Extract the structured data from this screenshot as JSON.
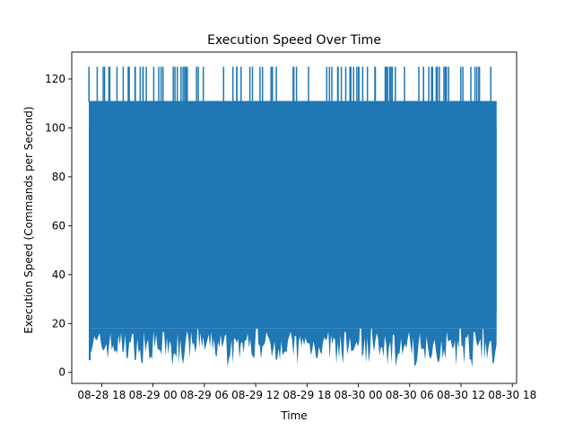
{
  "chart_data": {
    "type": "line",
    "title": "Execution Speed Over Time",
    "xlabel": "Time",
    "ylabel": "Execution Speed (Commands per Second)",
    "x_ticks": [
      "08-28 18",
      "08-29 00",
      "08-29 06",
      "08-29 12",
      "08-29 18",
      "08-30 00",
      "08-30 06",
      "08-30 12",
      "08-30 18"
    ],
    "x_range": [
      "2024-08-28 14:30",
      "2024-08-30 18:30"
    ],
    "data_x_range": [
      "2024-08-28 16:30",
      "2024-08-30 16:10"
    ],
    "y_ticks": [
      0,
      20,
      40,
      60,
      80,
      100,
      120
    ],
    "ylim": [
      -4.5,
      131
    ],
    "series": [
      {
        "color": "#1f77b4",
        "typical_max": 111,
        "spike_max": 125,
        "spike_count": 95,
        "typical_min_range": [
          5,
          25
        ],
        "dip_min": 2
      }
    ],
    "grid": false,
    "legend": "none"
  }
}
